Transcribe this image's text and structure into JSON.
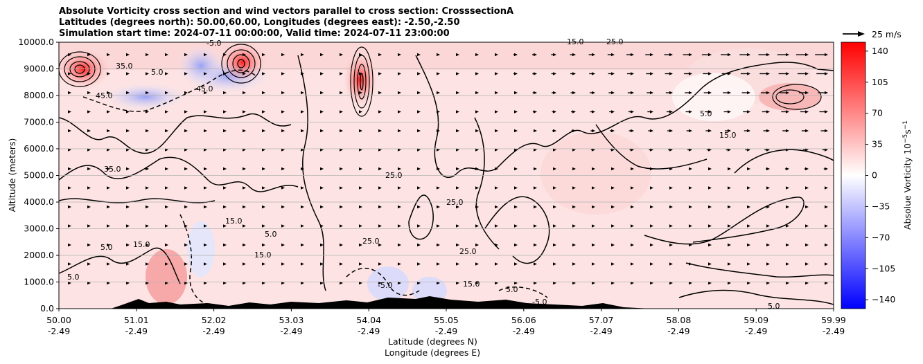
{
  "titles": {
    "line1": "Absolute Vorticity cross section and wind vectors parallel to cross section: CrosssectionA",
    "line2": "Latitudes (degrees north): 50.00,60.00, Longitudes (degrees east): -2.50,-2.50",
    "line3": "Simulation start time: 2024-07-11 00:00:00, Valid time: 2024-07-11 23:00:00"
  },
  "quiver_key": {
    "label": "25 m/s"
  },
  "chart_data": {
    "type": "contour",
    "title": "Absolute Vorticity cross section and wind vectors parallel to cross section: CrosssectionA",
    "xlabel_lat": "Latitude (degrees N)",
    "xlabel_lon": "Longitude (degrees E)",
    "ylabel": "Altitude (meters)",
    "xlim": [
      50.0,
      59.99
    ],
    "ylim": [
      0,
      10000
    ],
    "x_ticks": [
      {
        "lat": "50.00",
        "lon": "-2.49"
      },
      {
        "lat": "51.01",
        "lon": "-2.49"
      },
      {
        "lat": "52.02",
        "lon": "-2.49"
      },
      {
        "lat": "53.03",
        "lon": "-2.49"
      },
      {
        "lat": "54.04",
        "lon": "-2.49"
      },
      {
        "lat": "55.05",
        "lon": "-2.49"
      },
      {
        "lat": "56.06",
        "lon": "-2.49"
      },
      {
        "lat": "57.07",
        "lon": "-2.49"
      },
      {
        "lat": "58.08",
        "lon": "-2.49"
      },
      {
        "lat": "59.09",
        "lon": "-2.49"
      },
      {
        "lat": "59.99",
        "lon": "-2.49"
      }
    ],
    "y_ticks": [
      "0.0",
      "1000.0",
      "2000.0",
      "3000.0",
      "4000.0",
      "5000.0",
      "6000.0",
      "7000.0",
      "8000.0",
      "9000.0",
      "10000.0"
    ],
    "colorbar": {
      "label": "Absolue Vorticity 10",
      "label_sup": "−5",
      "label_unit": "s",
      "label_sup2": "−1",
      "ticks": [
        "140",
        "105",
        "70",
        "35",
        "0",
        "−35",
        "−70",
        "−105",
        "−140"
      ],
      "range": [
        -150,
        150
      ]
    },
    "contour_labels": [
      "5.0",
      "15.0",
      "25.0",
      "35.0",
      "45.0",
      "-5.0"
    ]
  }
}
